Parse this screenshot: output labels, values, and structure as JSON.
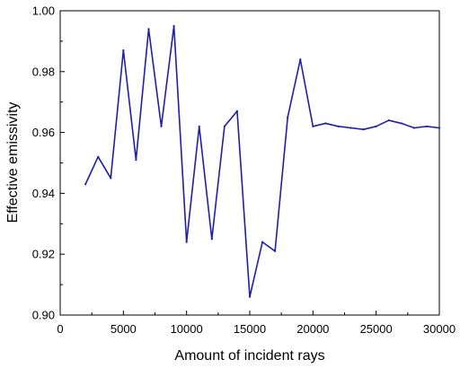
{
  "chart_data": {
    "type": "line",
    "title": "",
    "xlabel": "Amount of incident rays",
    "ylabel": "Effective emissivity",
    "xlim": [
      0,
      30000
    ],
    "ylim": [
      0.9,
      1.0
    ],
    "x_ticks": [
      0,
      5000,
      10000,
      15000,
      20000,
      25000,
      30000
    ],
    "x_tick_labels": [
      "0",
      "5000",
      "10000",
      "15000",
      "20000",
      "25000",
      "30000"
    ],
    "y_ticks": [
      0.9,
      0.92,
      0.94,
      0.96,
      0.98,
      1.0
    ],
    "y_tick_labels": [
      "0.90",
      "0.92",
      "0.94",
      "0.96",
      "0.98",
      "1.00"
    ],
    "grid": false,
    "series": [
      {
        "color": "#1f1fa8",
        "x": [
          2000,
          3000,
          4000,
          5000,
          6000,
          7000,
          8000,
          9000,
          10000,
          11000,
          12000,
          13000,
          14000,
          15000,
          16000,
          17000,
          18000,
          19000,
          20000,
          21000,
          22000,
          23000,
          24000,
          25000,
          26000,
          27000,
          28000,
          29000,
          30000
        ],
        "y": [
          0.943,
          0.952,
          0.945,
          0.987,
          0.951,
          0.994,
          0.962,
          0.995,
          0.924,
          0.962,
          0.925,
          0.962,
          0.967,
          0.906,
          0.924,
          0.921,
          0.965,
          0.984,
          0.962,
          0.963,
          0.962,
          0.9615,
          0.961,
          0.962,
          0.964,
          0.963,
          0.9615,
          0.962,
          0.9615
        ]
      }
    ]
  }
}
